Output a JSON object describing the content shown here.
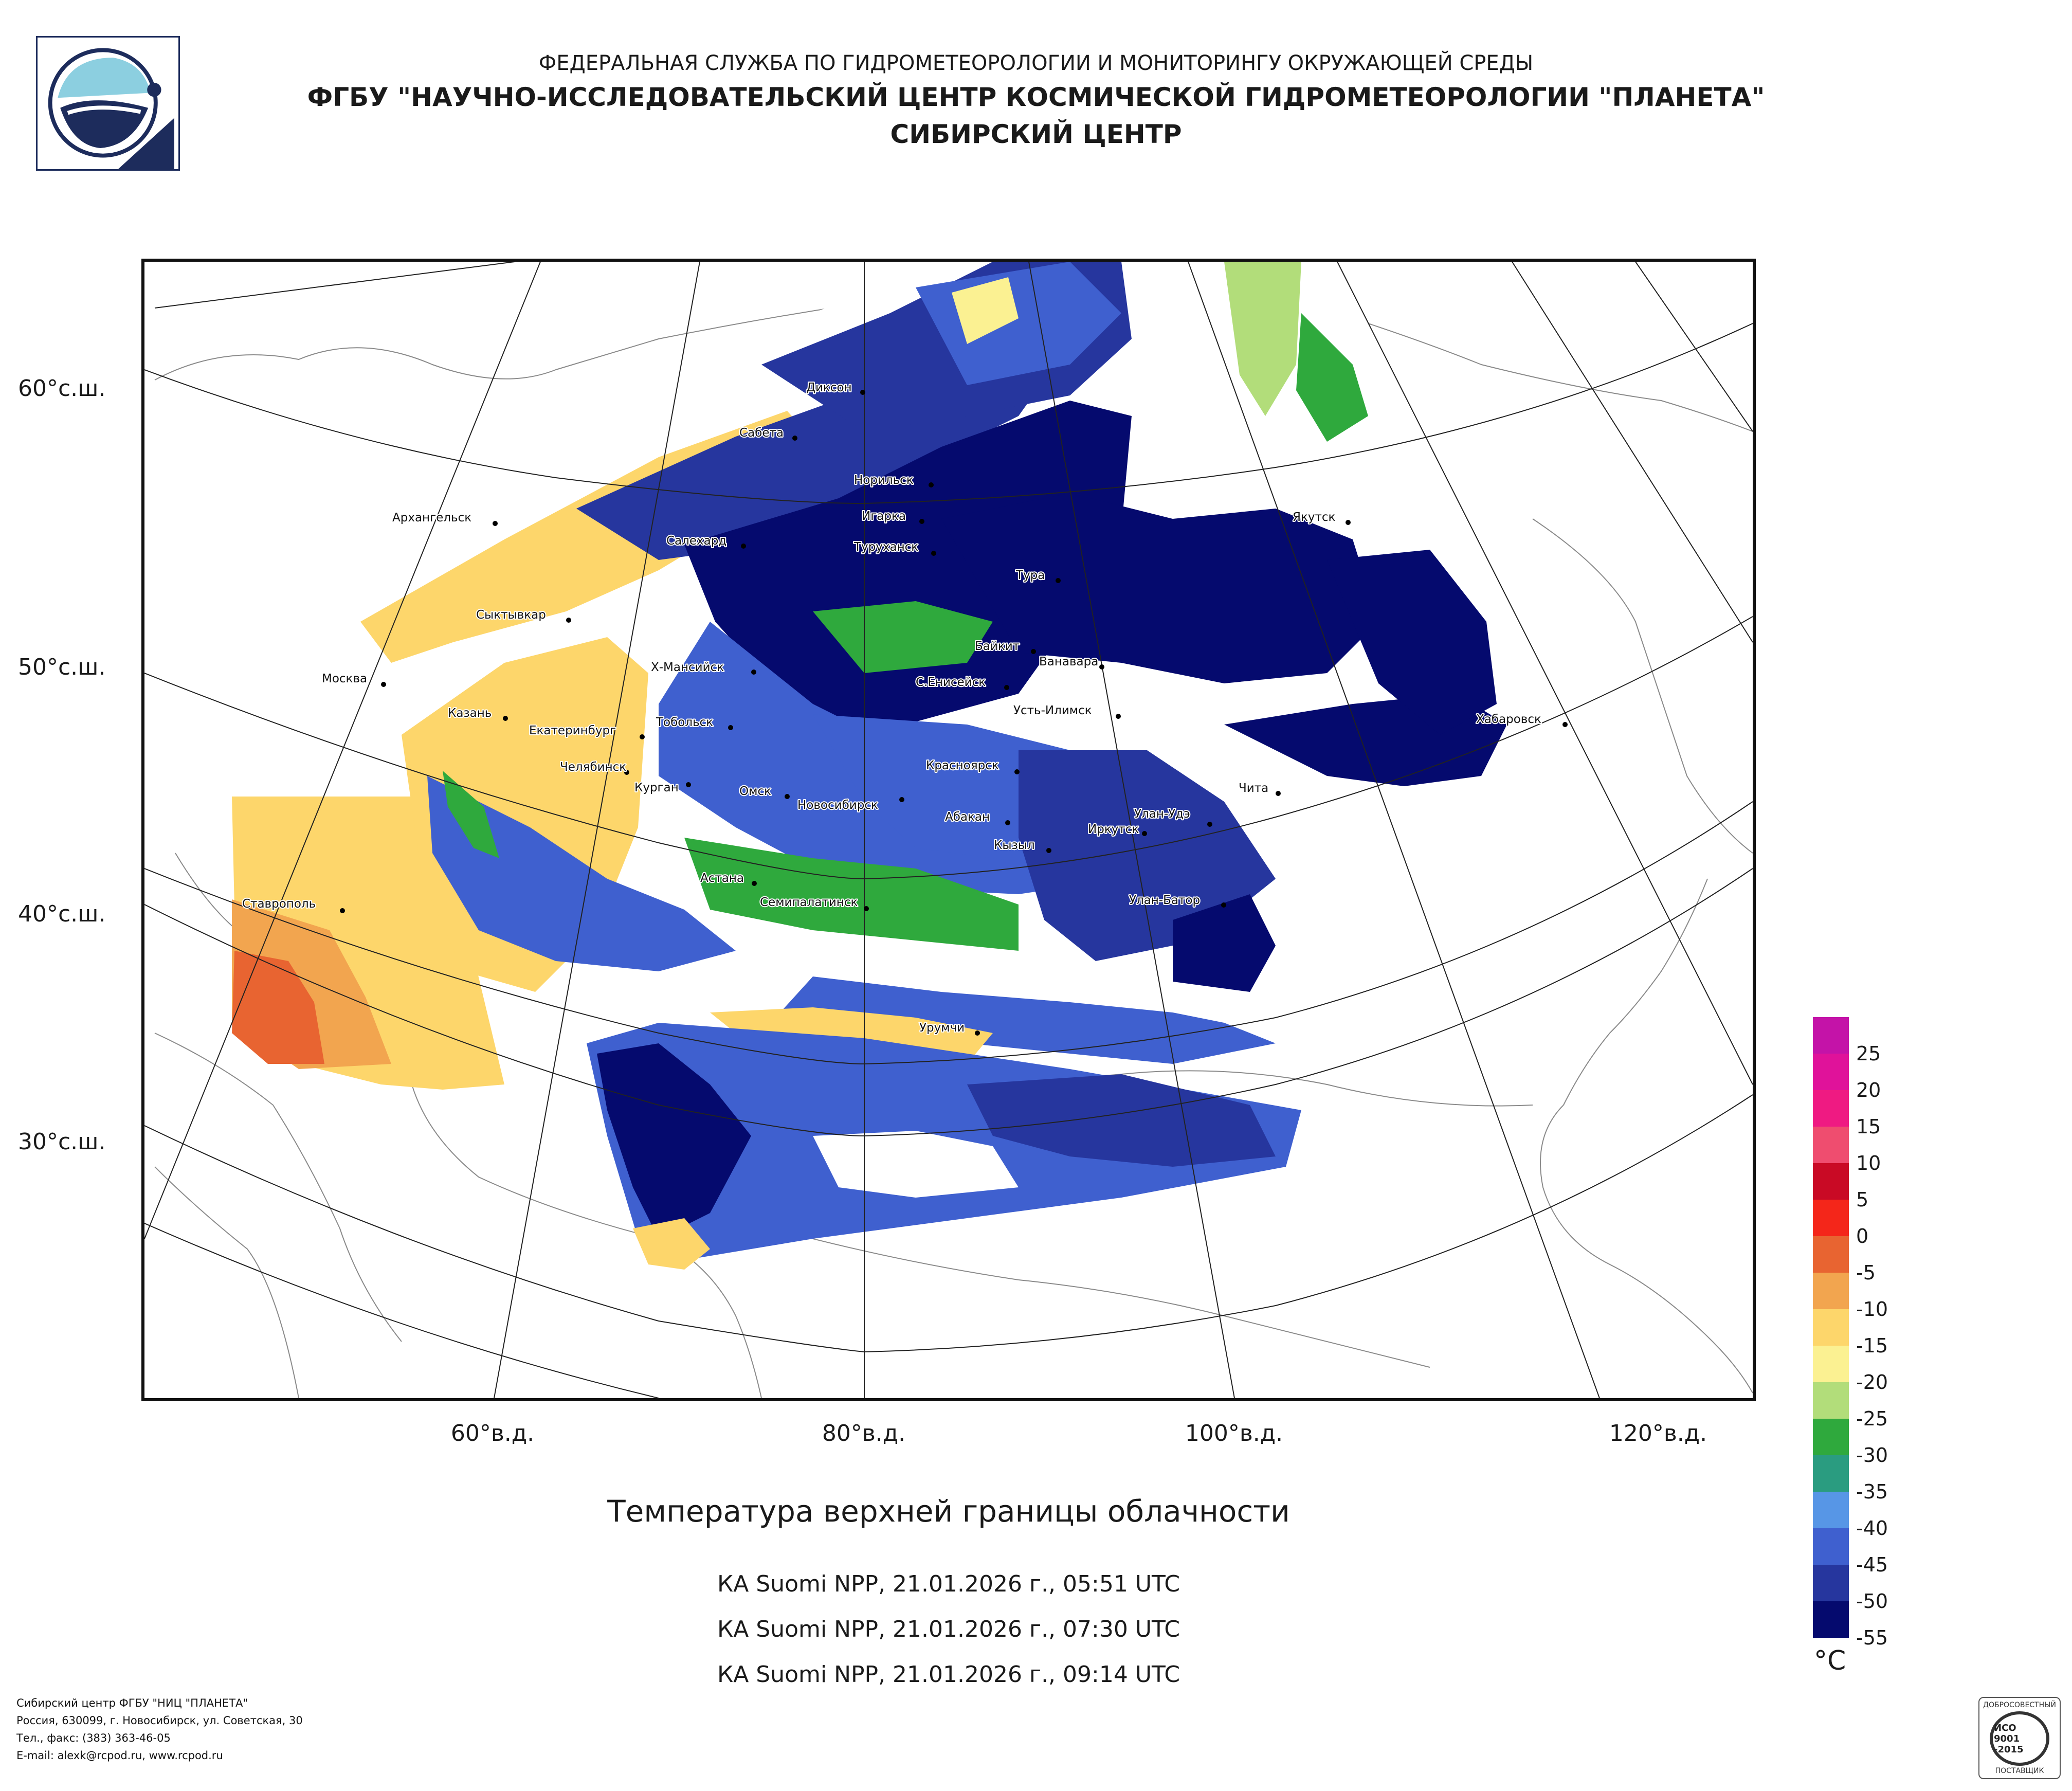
{
  "header": {
    "line1": "ФЕДЕРАЛЬНАЯ СЛУЖБА ПО ГИДРОМЕТЕОРОЛОГИИ И МОНИТОРИНГУ ОКРУЖАЮЩЕЙ СРЕДЫ",
    "line2": "ФГБУ \"НАУЧНО-ИССЛЕДОВАТЕЛЬСКИЙ ЦЕНТР КОСМИЧЕСКОЙ ГИДРОМЕТЕОРОЛОГИИ \"ПЛАНЕТА\"",
    "line3": "СИБИРСКИЙ ЦЕНТР"
  },
  "map": {
    "latitude_labels": [
      "60°с.ш.",
      "50°с.ш.",
      "40°с.ш.",
      "30°с.ш."
    ],
    "longitude_labels": [
      "60°в.д.",
      "80°в.д.",
      "100°в.д.",
      "120°в.д."
    ],
    "cities": [
      "Диксон",
      "Сабета",
      "Норильск",
      "Игарка",
      "Туруханск",
      "Тура",
      "Якутск",
      "Архангельск",
      "Салехард",
      "Сыктывкар",
      "Москва",
      "Казань",
      "Екатеринбург",
      "Челябинск",
      "Курган",
      "Тобольск",
      "Х-Мансийск",
      "Омск",
      "Новосибирск",
      "Красноярск",
      "Абакан",
      "Кызыл",
      "Иркутск",
      "Улан-Удэ",
      "Чита",
      "Байкит",
      "Ванавара",
      "С.Енисейск",
      "Усть-Илимск",
      "Хабаровск",
      "Астана",
      "Семипалатинск",
      "Ставрополь",
      "Улан-Батор",
      "Урумчи"
    ]
  },
  "legend": {
    "unit": "°С",
    "labels": [
      "25",
      "20",
      "15",
      "10",
      "5",
      "0",
      "-5",
      "-10",
      "-15",
      "-20",
      "-25",
      "-30",
      "-35",
      "-40",
      "-45",
      "-50",
      "-55"
    ],
    "colors": [
      "#c413a8",
      "#e0129a",
      "#ef1a82",
      "#ef4d6f",
      "#c90a25",
      "#f4261a",
      "#e86431",
      "#f2a54f",
      "#fdd66b",
      "#fbf192",
      "#b2dd7a",
      "#2fa93d",
      "#2a9c80",
      "#5796e6",
      "#3f60cf",
      "#26369e",
      "#050a6e"
    ]
  },
  "caption": {
    "title": "Температура верхней границы облачности",
    "passes": [
      "КА Suomi NPP, 21.01.2026 г., 05:51 UTC",
      "КА Suomi NPP, 21.01.2026 г., 07:30 UTC",
      "КА Suomi NPP, 21.01.2026 г., 09:14 UTC"
    ]
  },
  "footer": {
    "line1": "Сибирский центр ФГБУ \"НИЦ \"ПЛАНЕТА\"",
    "line2": "Россия, 630099, г. Новосибирск, ул. Советская, 30",
    "line3": "Тел., факс: (383) 363-46-05",
    "line4": "E-mail: alexk@rcpod.ru, www.rcpod.ru"
  },
  "iso_badge": {
    "top": "ДОБРОСОВЕСТНЫЙ",
    "line1": "ИСО",
    "line2": "9001",
    "line3": "-2015",
    "bottom": "ПОСТАВЩИК"
  }
}
